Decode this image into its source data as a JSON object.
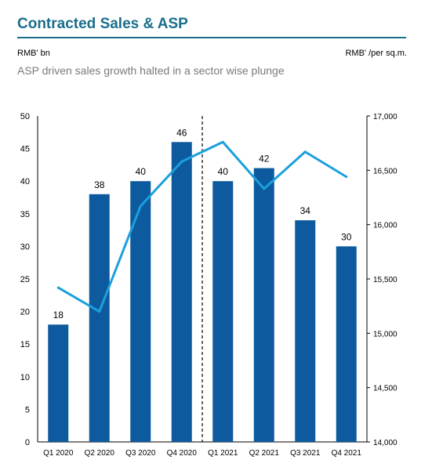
{
  "header": {
    "title": "Contracted Sales & ASP",
    "left_axis_unit": "RMB' bn",
    "right_axis_unit": "RMB' /per sq.m.",
    "subtitle": "ASP driven sales growth halted in a sector wise plunge"
  },
  "colors": {
    "bar": "#0d5a9e",
    "line": "#1aa0dc",
    "title": "#1a6e8c"
  },
  "chart_data": {
    "type": "bar",
    "categories": [
      "Q1 2020",
      "Q2 2020",
      "Q3 2020",
      "Q4 2020",
      "Q1 2021",
      "Q2 2021",
      "Q3 2021",
      "Q4 2021"
    ],
    "series": [
      {
        "type": "bar",
        "axis": "left",
        "values": [
          18,
          38,
          40,
          46,
          40,
          42,
          34,
          30
        ],
        "data_labels": [
          "18",
          "38",
          "40",
          "46",
          "40",
          "42",
          "34",
          "30"
        ]
      },
      {
        "type": "line",
        "axis": "right",
        "values": [
          15420,
          15200,
          16170,
          16580,
          16760,
          16330,
          16670,
          16440
        ]
      }
    ],
    "ylim_left": [
      0,
      50
    ],
    "yticks_left": [
      "0",
      "5",
      "10",
      "15",
      "20",
      "25",
      "30",
      "35",
      "40",
      "45",
      "50"
    ],
    "ylim_right": [
      14000,
      17000
    ],
    "yticks_right": [
      "14,000",
      "14,500",
      "15,000",
      "15,500",
      "16,000",
      "16,500",
      "17,000"
    ],
    "divider_after_category": "Q4 2020",
    "grid": false,
    "legend": "none"
  }
}
